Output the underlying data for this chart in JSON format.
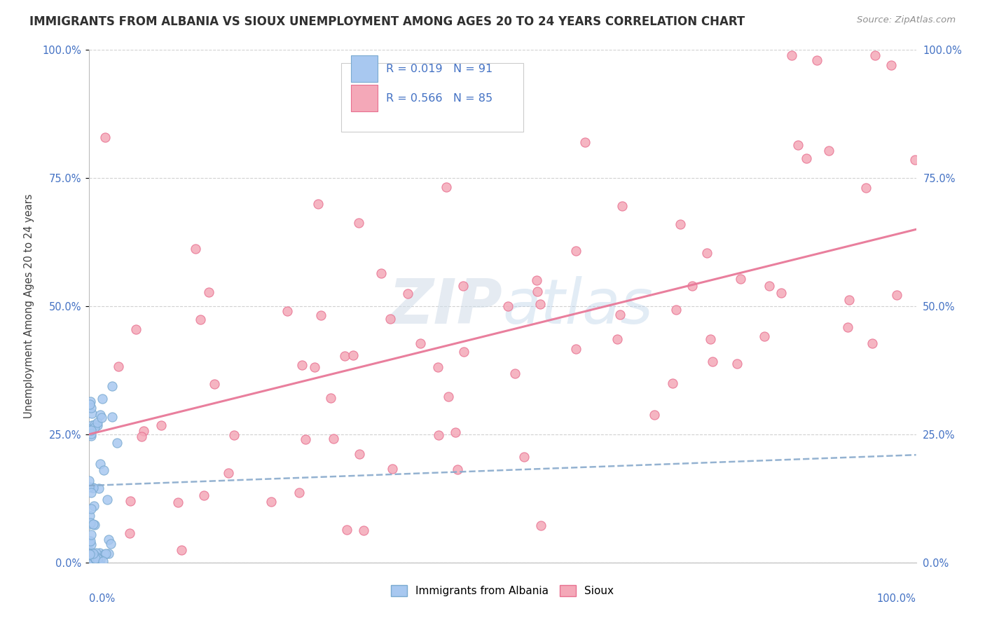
{
  "title": "IMMIGRANTS FROM ALBANIA VS SIOUX UNEMPLOYMENT AMONG AGES 20 TO 24 YEARS CORRELATION CHART",
  "source_text": "Source: ZipAtlas.com",
  "ylabel": "Unemployment Among Ages 20 to 24 years",
  "ytick_values": [
    0,
    25,
    50,
    75,
    100
  ],
  "xlim": [
    0,
    100
  ],
  "ylim": [
    0,
    100
  ],
  "legend_r1": "R = 0.019",
  "legend_n1": "N = 91",
  "legend_r2": "R = 0.566",
  "legend_n2": "N = 85",
  "color_albania": "#a8c8f0",
  "color_albania_edge": "#7aaad0",
  "color_sioux": "#f4a8b8",
  "color_sioux_edge": "#e87090",
  "color_albania_line": "#88aacc",
  "color_sioux_line": "#e87898",
  "color_text_blue": "#4472c4",
  "color_title": "#303030",
  "color_source": "#909090",
  "color_grid": "#cccccc",
  "watermark_color": "#d0dce8",
  "sioux_trend_y_start": 25,
  "sioux_trend_y_end": 65,
  "albania_trend_y_start": 15,
  "albania_trend_y_end": 21
}
